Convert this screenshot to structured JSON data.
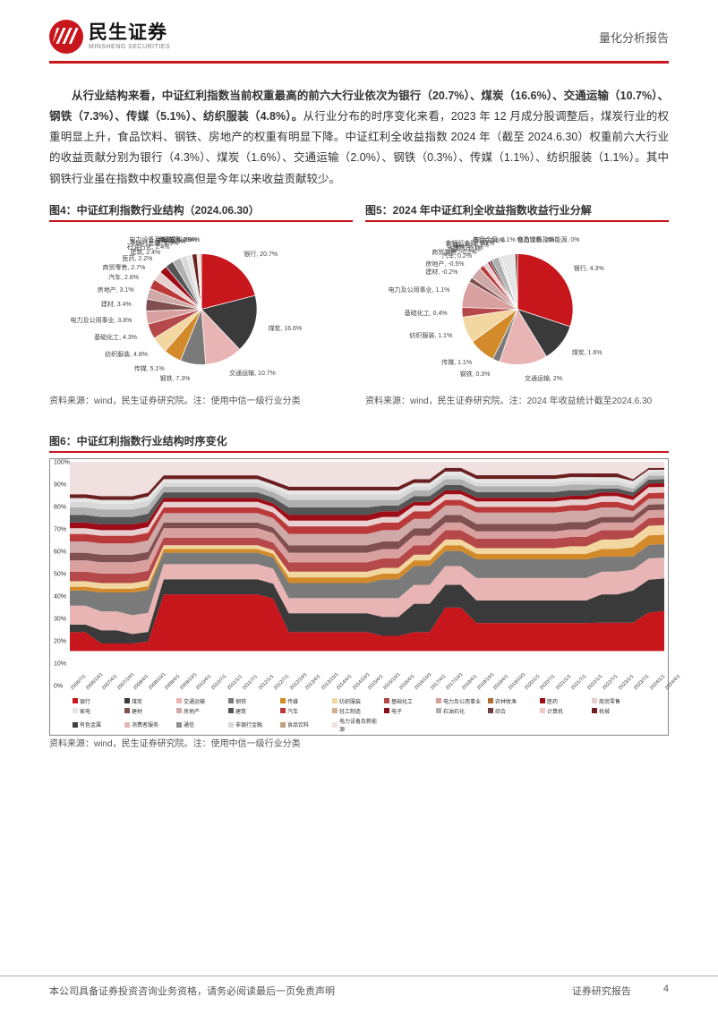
{
  "header": {
    "logo_cn": "民生证券",
    "logo_en": "MINSHENG SECURITIES",
    "report_type": "量化分析报告"
  },
  "paragraph": {
    "lead_bold": "从行业结构来看，中证红利指数当前权重最高的前六大行业依次为银行（20.7%）、煤炭（16.6%）、交通运输（10.7%）、钢铁（7.3%）、传媒（5.1%）、纺织服装（4.8%）。",
    "rest": "从行业分布的时序变化来看，2023 年 12 月成分股调整后，煤炭行业的权重明显上升，食品饮料、钢铁、房地产的权重有明显下降。中证红利全收益指数 2024 年（截至 2024.6.30）权重前六大行业的收益贡献分别为银行（4.3%）、煤炭（1.6%）、交通运输（2.0%）、钢铁（0.3%）、传媒（1.1%）、纺织服装（1.1%）。其中钢铁行业虽在指数中权重较高但是今年以来收益贡献较少。"
  },
  "chart4": {
    "title": "图4：中证红利指数行业结构（2024.06.30）",
    "slices": [
      {
        "label": "银行",
        "value": 20.7,
        "color": "#c8161d"
      },
      {
        "label": "煤炭",
        "value": 16.6,
        "color": "#3a3a3a"
      },
      {
        "label": "交通运输",
        "value": 10.7,
        "color": "#e9b4b4"
      },
      {
        "label": "钢铁",
        "value": 7.3,
        "color": "#7a7a7a"
      },
      {
        "label": "传媒",
        "value": 5.1,
        "color": "#d28a2a"
      },
      {
        "label": "纺织服装",
        "value": 4.8,
        "color": "#f2d7a0"
      },
      {
        "label": "基础化工",
        "value": 4.3,
        "color": "#b54848"
      },
      {
        "label": "电力及公用事业",
        "value": 3.8,
        "color": "#d9a0a0"
      },
      {
        "label": "建材",
        "value": 3.4,
        "color": "#805050"
      },
      {
        "label": "房地产",
        "value": 3.1,
        "color": "#cfa8a8"
      },
      {
        "label": "汽车",
        "value": 2.8,
        "color": "#ba3a3a"
      },
      {
        "label": "商贸零售",
        "value": 2.7,
        "color": "#e8cfcf"
      },
      {
        "label": "医药",
        "value": 2.2,
        "color": "#9e0d17"
      },
      {
        "label": "建筑",
        "value": 2.4,
        "color": "#555555"
      },
      {
        "label": "石油石化",
        "value": 2.4,
        "color": "#b0b0b0"
      },
      {
        "label": "非银行金融",
        "value": 1.9,
        "color": "#d9d9d9"
      },
      {
        "label": "家电",
        "value": 1.5,
        "color": "#e6e6e6"
      },
      {
        "label": "机械",
        "value": 1.4,
        "color": "#6b2020"
      },
      {
        "label": "电力设备及新能源",
        "value": 0.9,
        "color": "#f0e0e0"
      },
      {
        "label": "食品饮料",
        "value": 0.4,
        "color": "#c0a080"
      }
    ],
    "source": "资料来源：wind，民生证券研究院。注：使用中信一级行业分类"
  },
  "chart5": {
    "title": "图5：2024 年中证红利全收益指数收益行业分解",
    "slices": [
      {
        "label": "银行",
        "value": 4.3,
        "color": "#c8161d"
      },
      {
        "label": "煤炭",
        "value": 1.6,
        "color": "#3a3a3a"
      },
      {
        "label": "交通运输",
        "value": 2.0,
        "color": "#e9b4b4"
      },
      {
        "label": "钢铁",
        "value": 0.3,
        "color": "#7a7a7a"
      },
      {
        "label": "传媒",
        "value": 1.1,
        "color": "#d28a2a"
      },
      {
        "label": "纺织服装",
        "value": 1.1,
        "color": "#f2d7a0"
      },
      {
        "label": "基础化工",
        "value": 0.4,
        "color": "#b54848"
      },
      {
        "label": "电力及公用事业",
        "value": 1.1,
        "color": "#d9a0a0"
      },
      {
        "label": "建材",
        "value": -0.2,
        "color": "#805050"
      },
      {
        "label": "房地产",
        "value": -0.5,
        "color": "#cfa8a8"
      },
      {
        "label": "汽车",
        "value": 0.2,
        "color": "#ba3a3a"
      },
      {
        "label": "商贸零售",
        "value": -0.2,
        "color": "#e8cfcf"
      },
      {
        "label": "医药",
        "value": -0.1,
        "color": "#9e0d17"
      },
      {
        "label": "建筑",
        "value": 0.1,
        "color": "#555555"
      },
      {
        "label": "石油石化",
        "value": 0.3,
        "color": "#b0b0b0"
      },
      {
        "label": "非银行金融",
        "value": 0.1,
        "color": "#d9d9d9"
      },
      {
        "label": "家电",
        "value": 0.6,
        "color": "#e6e6e6"
      },
      {
        "label": "有色金属",
        "value": 0.1,
        "color": "#6b2020"
      },
      {
        "label": "电力设备及新能源",
        "value": 0.0,
        "color": "#f0e0e0"
      },
      {
        "label": "食品饮料",
        "value": 0.0,
        "color": "#c0a080"
      }
    ],
    "source": "资料来源：wind，民生证券研究院。注：2024 年收益统计截至2024.6.30"
  },
  "chart6": {
    "title": "图6：中证红利指数行业结构时序变化",
    "ylim": [
      0,
      100
    ],
    "ytick_step": 10,
    "y_suffix": "%",
    "x_categories": [
      "2006/7/1",
      "2006/10/1",
      "2007/4/1",
      "2007/10/1",
      "2008/4/1",
      "2008/10/1",
      "2009/4/1",
      "2009/10/1",
      "2010/4/1",
      "2010/7/1",
      "2011/1/1",
      "2011/7/1",
      "2012/1/1",
      "2012/7/1",
      "2012/10/1",
      "2013/4/1",
      "2013/10/1",
      "2014/4/1",
      "2014/10/1",
      "2015/4/1",
      "2015/10/1",
      "2016/4/1",
      "2016/10/1",
      "2017/4/1",
      "2017/10/1",
      "2018/4/1",
      "2018/10/1",
      "2019/4/1",
      "2019/10/1",
      "2020/1/1",
      "2020/7/1",
      "2021/1/1",
      "2021/7/1",
      "2022/1/1",
      "2022/7/1",
      "2023/1/1",
      "2023/7/1",
      "2024/1/1",
      "2024/4/1"
    ],
    "legend": [
      {
        "label": "银行",
        "color": "#c8161d"
      },
      {
        "label": "煤炭",
        "color": "#3a3a3a"
      },
      {
        "label": "交通运输",
        "color": "#e9b4b4"
      },
      {
        "label": "钢铁",
        "color": "#7a7a7a"
      },
      {
        "label": "传媒",
        "color": "#d28a2a"
      },
      {
        "label": "纺织服装",
        "color": "#f2d7a0"
      },
      {
        "label": "基础化工",
        "color": "#b54848"
      },
      {
        "label": "电力及公用事业",
        "color": "#d9a0a0"
      },
      {
        "label": "农林牧渔",
        "color": "#aa7030"
      },
      {
        "label": "医药",
        "color": "#9e0d17"
      },
      {
        "label": "商贸零售",
        "color": "#e8cfcf"
      },
      {
        "label": "家电",
        "color": "#e6e6e6"
      },
      {
        "label": "建材",
        "color": "#805050"
      },
      {
        "label": "房地产",
        "color": "#cfa8a8"
      },
      {
        "label": "建筑",
        "color": "#555555"
      },
      {
        "label": "汽车",
        "color": "#ba3a3a"
      },
      {
        "label": "轻工制造",
        "color": "#d0b090"
      },
      {
        "label": "电子",
        "color": "#8a0f18"
      },
      {
        "label": "石油石化",
        "color": "#b0b0b0"
      },
      {
        "label": "综合",
        "color": "#704040"
      },
      {
        "label": "计算机",
        "color": "#efc8c8"
      },
      {
        "label": "机械",
        "color": "#6b2020"
      },
      {
        "label": "有色金属",
        "color": "#404040"
      },
      {
        "label": "消费者服务",
        "color": "#e0b8b8"
      },
      {
        "label": "通信",
        "color": "#909090"
      },
      {
        "label": "非银行金融",
        "color": "#d9d9d9"
      },
      {
        "label": "食品饮料",
        "color": "#c0a080"
      },
      {
        "label": "电力设备及新能源",
        "color": "#f0e0e0"
      }
    ],
    "series_stack": [
      {
        "color": "#c8161d",
        "vals": [
          10,
          10,
          4,
          4,
          4,
          5,
          30,
          30,
          30,
          30,
          30,
          30,
          30,
          28,
          10,
          10,
          10,
          10,
          10,
          10,
          8,
          8,
          10,
          10,
          23,
          23,
          15,
          15,
          15,
          15,
          15,
          15,
          15,
          15,
          15,
          15,
          15,
          20,
          21
        ]
      },
      {
        "color": "#3a3a3a",
        "vals": [
          4,
          4,
          7,
          7,
          5,
          5,
          8,
          8,
          8,
          8,
          8,
          8,
          8,
          8,
          10,
          10,
          10,
          10,
          10,
          10,
          10,
          10,
          15,
          15,
          12,
          12,
          12,
          12,
          12,
          12,
          12,
          12,
          12,
          12,
          15,
          15,
          17,
          17,
          17
        ]
      },
      {
        "color": "#e9b4b4",
        "vals": [
          10,
          10,
          10,
          10,
          10,
          10,
          8,
          8,
          8,
          8,
          8,
          8,
          8,
          8,
          8,
          8,
          8,
          8,
          8,
          8,
          10,
          10,
          10,
          10,
          10,
          10,
          12,
          12,
          12,
          12,
          12,
          12,
          12,
          12,
          12,
          12,
          11,
          11,
          11
        ]
      },
      {
        "color": "#7a7a7a",
        "vals": [
          8,
          8,
          10,
          10,
          12,
          12,
          6,
          6,
          6,
          6,
          6,
          6,
          6,
          6,
          8,
          8,
          8,
          8,
          8,
          8,
          10,
          10,
          10,
          10,
          8,
          8,
          10,
          10,
          10,
          10,
          10,
          10,
          10,
          10,
          8,
          8,
          7,
          7,
          7
        ]
      },
      {
        "color": "#d28a2a",
        "vals": [
          2,
          2,
          2,
          2,
          2,
          2,
          2,
          2,
          2,
          2,
          2,
          2,
          2,
          2,
          3,
          3,
          3,
          3,
          3,
          3,
          3,
          3,
          3,
          3,
          3,
          3,
          3,
          3,
          3,
          3,
          3,
          3,
          3,
          3,
          4,
          4,
          5,
          5,
          5
        ]
      },
      {
        "color": "#f2d7a0",
        "vals": [
          3,
          3,
          3,
          3,
          3,
          3,
          2,
          2,
          2,
          2,
          2,
          2,
          2,
          2,
          3,
          3,
          3,
          3,
          3,
          3,
          3,
          3,
          3,
          3,
          3,
          3,
          3,
          3,
          3,
          3,
          3,
          3,
          4,
          4,
          5,
          5,
          5,
          5,
          5
        ]
      },
      {
        "color": "#b54848",
        "vals": [
          5,
          5,
          5,
          5,
          5,
          5,
          4,
          4,
          4,
          4,
          4,
          4,
          4,
          4,
          5,
          5,
          5,
          5,
          5,
          5,
          5,
          5,
          5,
          5,
          5,
          5,
          5,
          5,
          5,
          5,
          5,
          5,
          5,
          5,
          5,
          5,
          4,
          4,
          4
        ]
      },
      {
        "color": "#d9a0a0",
        "vals": [
          6,
          6,
          6,
          6,
          6,
          6,
          5,
          5,
          5,
          5,
          5,
          5,
          5,
          5,
          5,
          5,
          5,
          5,
          5,
          5,
          5,
          5,
          5,
          5,
          4,
          4,
          4,
          4,
          4,
          4,
          4,
          4,
          4,
          4,
          4,
          4,
          4,
          4,
          4
        ]
      },
      {
        "color": "#805050",
        "vals": [
          4,
          4,
          4,
          4,
          4,
          4,
          3,
          3,
          3,
          3,
          3,
          3,
          3,
          3,
          4,
          4,
          4,
          4,
          4,
          4,
          4,
          4,
          4,
          4,
          4,
          4,
          4,
          4,
          4,
          4,
          4,
          4,
          4,
          4,
          3,
          3,
          3,
          3,
          3
        ]
      },
      {
        "color": "#cfa8a8",
        "vals": [
          6,
          6,
          6,
          6,
          6,
          6,
          5,
          5,
          5,
          5,
          5,
          5,
          5,
          5,
          6,
          6,
          6,
          6,
          6,
          6,
          6,
          6,
          5,
          5,
          5,
          5,
          6,
          6,
          6,
          6,
          6,
          6,
          6,
          6,
          5,
          5,
          3,
          3,
          3
        ]
      },
      {
        "color": "#ba3a3a",
        "vals": [
          4,
          4,
          4,
          4,
          4,
          4,
          3,
          3,
          3,
          3,
          3,
          3,
          3,
          3,
          4,
          4,
          4,
          4,
          4,
          4,
          4,
          4,
          4,
          4,
          3,
          3,
          3,
          3,
          3,
          3,
          3,
          3,
          3,
          3,
          3,
          3,
          3,
          3,
          3
        ]
      },
      {
        "color": "#e8cfcf",
        "vals": [
          3,
          3,
          3,
          3,
          3,
          3,
          3,
          3,
          3,
          3,
          3,
          3,
          3,
          3,
          3,
          3,
          3,
          3,
          3,
          3,
          3,
          3,
          3,
          3,
          3,
          3,
          3,
          3,
          3,
          3,
          3,
          3,
          3,
          3,
          3,
          3,
          3,
          3,
          3
        ]
      },
      {
        "color": "#9e0d17",
        "vals": [
          3,
          3,
          3,
          3,
          3,
          3,
          2,
          2,
          2,
          2,
          2,
          2,
          2,
          2,
          3,
          3,
          3,
          3,
          3,
          3,
          3,
          3,
          2,
          2,
          2,
          2,
          2,
          2,
          2,
          2,
          2,
          2,
          2,
          2,
          2,
          2,
          2,
          2,
          2
        ]
      },
      {
        "color": "#555555",
        "vals": [
          4,
          4,
          4,
          4,
          4,
          4,
          3,
          3,
          3,
          3,
          3,
          3,
          3,
          3,
          4,
          4,
          4,
          4,
          4,
          4,
          3,
          3,
          3,
          3,
          3,
          3,
          3,
          3,
          3,
          3,
          3,
          3,
          3,
          3,
          2,
          2,
          2,
          2,
          2
        ]
      },
      {
        "color": "#b0b0b0",
        "vals": [
          4,
          4,
          4,
          4,
          4,
          4,
          3,
          3,
          3,
          3,
          3,
          3,
          3,
          3,
          4,
          4,
          4,
          4,
          4,
          4,
          3,
          3,
          3,
          3,
          3,
          3,
          3,
          3,
          3,
          3,
          3,
          3,
          3,
          3,
          2,
          2,
          2,
          2,
          2
        ]
      },
      {
        "color": "#d9d9d9",
        "vals": [
          3,
          3,
          3,
          3,
          3,
          3,
          2,
          2,
          2,
          2,
          2,
          2,
          2,
          2,
          3,
          3,
          3,
          3,
          3,
          3,
          3,
          3,
          2,
          2,
          2,
          2,
          2,
          2,
          2,
          2,
          2,
          2,
          2,
          2,
          2,
          2,
          2,
          2,
          2
        ]
      },
      {
        "color": "#e6e6e6",
        "vals": [
          2,
          2,
          2,
          2,
          2,
          2,
          2,
          2,
          2,
          2,
          2,
          2,
          2,
          2,
          2,
          2,
          2,
          2,
          2,
          2,
          2,
          2,
          2,
          2,
          2,
          2,
          2,
          2,
          2,
          2,
          2,
          2,
          2,
          2,
          2,
          2,
          2,
          1,
          1
        ]
      },
      {
        "color": "#6b2020",
        "vals": [
          2,
          2,
          2,
          2,
          2,
          2,
          2,
          2,
          2,
          2,
          2,
          2,
          2,
          2,
          2,
          2,
          2,
          2,
          2,
          2,
          2,
          2,
          2,
          2,
          2,
          2,
          2,
          2,
          2,
          2,
          2,
          2,
          2,
          2,
          2,
          2,
          1,
          1,
          1
        ]
      },
      {
        "color": "#f0e0e0",
        "vals": [
          17,
          17,
          18,
          18,
          18,
          16,
          7,
          7,
          7,
          7,
          7,
          7,
          7,
          10,
          13,
          13,
          13,
          13,
          13,
          13,
          13,
          13,
          9,
          9,
          3,
          3,
          7,
          7,
          7,
          7,
          7,
          7,
          6,
          6,
          6,
          6,
          9,
          3,
          3
        ]
      }
    ],
    "source": "资料来源：wind，民生证券研究院。注：使用中信一级行业分类",
    "background_color": "#ffffff",
    "grid_color": "#cccccc",
    "label_fontsize": 7
  },
  "footer": {
    "disclaimer": "本公司具备证券投资咨询业务资格，请务必阅读最后一页免责声明",
    "label": "证券研究报告",
    "page": "4"
  }
}
